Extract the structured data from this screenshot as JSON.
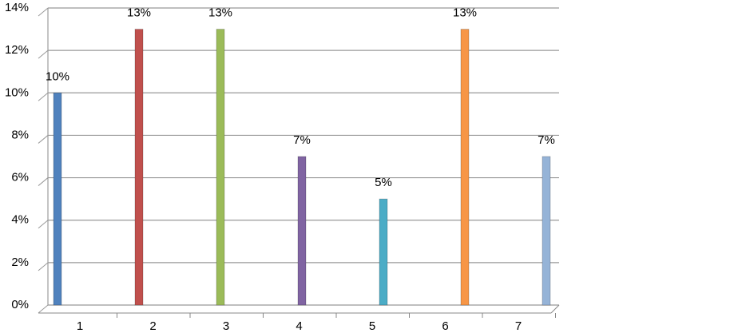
{
  "chart_data": {
    "type": "bar",
    "categories": [
      "1",
      "2",
      "3",
      "4",
      "5",
      "6",
      "7"
    ],
    "values": [
      10,
      13,
      13,
      7,
      5,
      13,
      7
    ],
    "value_labels": [
      "10%",
      "13%",
      "13%",
      "7%",
      "5%",
      "13%",
      "7%"
    ],
    "colors": [
      "#4f81bd",
      "#c0504d",
      "#9bbb59",
      "#8064a2",
      "#4bacc6",
      "#f79646",
      "#95b3d7"
    ],
    "ylim": [
      0,
      14
    ],
    "yticks": [
      {
        "value": 0,
        "label": "0%"
      },
      {
        "value": 2,
        "label": "2%"
      },
      {
        "value": 4,
        "label": "4%"
      },
      {
        "value": 6,
        "label": "6%"
      },
      {
        "value": 8,
        "label": "8%"
      },
      {
        "value": 10,
        "label": "10%"
      },
      {
        "value": 12,
        "label": "12%"
      },
      {
        "value": 14,
        "label": "14%"
      }
    ],
    "grid": true
  }
}
